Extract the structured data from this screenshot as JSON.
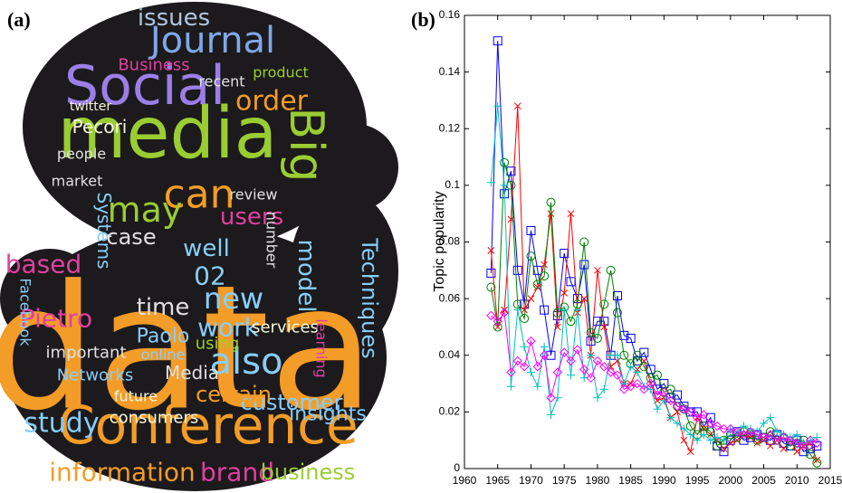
{
  "word_cloud": {
    "label": "(a)",
    "words": [
      "data",
      "Conference",
      "media",
      "Social",
      "Journal",
      "Big",
      "can",
      "may",
      "users",
      "study",
      "information",
      "brand",
      "business",
      "customer",
      "also",
      "new",
      "work",
      "time",
      "Pietro",
      "Paolo",
      "Pecori",
      "order",
      "issues",
      "Business",
      "insights",
      "certain",
      "Techniques",
      "model",
      "well",
      "based",
      "Facebook",
      "Networks",
      "Media",
      "services",
      "Systems",
      "case",
      "twitter",
      "important",
      "02",
      "consumers",
      "future",
      "online",
      "using",
      "number",
      "review",
      "product",
      "learning",
      "people",
      "recent",
      "market"
    ]
  },
  "chart_data": {
    "type": "line",
    "label": "(b)",
    "y_label": "Topic popularity",
    "x": [
      1964,
      1965,
      1966,
      1967,
      1968,
      1969,
      1970,
      1971,
      1972,
      1973,
      1974,
      1975,
      1976,
      1977,
      1978,
      1979,
      1980,
      1981,
      1982,
      1983,
      1984,
      1985,
      1986,
      1987,
      1988,
      1989,
      1990,
      1991,
      1992,
      1993,
      1994,
      1995,
      1996,
      1997,
      1998,
      1999,
      2000,
      2001,
      2002,
      2003,
      2004,
      2005,
      2006,
      2007,
      2008,
      2009,
      2010,
      2011,
      2012,
      2013
    ],
    "series": [
      {
        "color": "#0000ff",
        "marker": "square",
        "values": [
          0.069,
          0.151,
          0.097,
          0.105,
          0.07,
          0.058,
          0.084,
          0.07,
          0.056,
          0.04,
          0.054,
          0.076,
          0.066,
          0.06,
          0.072,
          0.045,
          0.052,
          0.052,
          0.04,
          0.061,
          0.047,
          0.046,
          0.038,
          0.041,
          0.035,
          0.028,
          0.03,
          0.025,
          0.026,
          0.022,
          0.02,
          0.02,
          0.015,
          0.018,
          0.008,
          0.006,
          0.01,
          0.013,
          0.01,
          0.011,
          0.012,
          0.011,
          0.01,
          0.012,
          0.009,
          0.008,
          0.01,
          0.006,
          0.007,
          0.008
        ]
      },
      {
        "color": "#ff0000",
        "marker": "x",
        "values": [
          0.077,
          0.05,
          0.056,
          0.088,
          0.128,
          0.056,
          0.06,
          0.064,
          0.072,
          0.09,
          0.05,
          0.062,
          0.09,
          0.055,
          0.06,
          0.04,
          0.07,
          0.05,
          0.036,
          0.038,
          0.03,
          0.03,
          0.035,
          0.038,
          0.03,
          0.024,
          0.025,
          0.018,
          0.02,
          0.01,
          0.006,
          0.018,
          0.014,
          0.012,
          0.01,
          0.007,
          0.009,
          0.01,
          0.012,
          0.011,
          0.009,
          0.01,
          0.008,
          0.01,
          0.007,
          0.01,
          0.006,
          0.008,
          0.009,
          0.003
        ]
      },
      {
        "color": "#008000",
        "marker": "circle",
        "values": [
          0.064,
          0.05,
          0.108,
          0.1,
          0.058,
          0.053,
          0.075,
          0.065,
          0.068,
          0.094,
          0.055,
          0.057,
          0.052,
          0.058,
          0.08,
          0.048,
          0.046,
          0.058,
          0.07,
          0.055,
          0.04,
          0.037,
          0.04,
          0.036,
          0.032,
          0.033,
          0.027,
          0.028,
          0.022,
          0.021,
          0.015,
          0.012,
          0.015,
          0.013,
          0.008,
          0.01,
          0.012,
          0.011,
          0.013,
          0.012,
          0.01,
          0.011,
          0.013,
          0.01,
          0.011,
          0.008,
          0.009,
          0.01,
          0.005,
          0.002
        ]
      },
      {
        "color": "#00bfbf",
        "marker": "plus",
        "values": [
          0.101,
          0.128,
          0.1,
          0.029,
          0.056,
          0.043,
          0.034,
          0.029,
          0.043,
          0.019,
          0.025,
          0.056,
          0.033,
          0.056,
          0.032,
          0.04,
          0.025,
          0.028,
          0.04,
          0.04,
          0.03,
          0.036,
          0.034,
          0.029,
          0.028,
          0.021,
          0.024,
          0.018,
          0.016,
          0.014,
          0.012,
          0.01,
          0.012,
          0.01,
          0.011,
          0.01,
          0.014,
          0.013,
          0.015,
          0.014,
          0.013,
          0.016,
          0.018,
          0.013,
          0.012,
          0.011,
          0.012,
          0.009,
          0.01,
          0.011
        ]
      },
      {
        "color": "#ff00ff",
        "marker": "diamond",
        "values": [
          0.054,
          0.052,
          0.055,
          0.034,
          0.038,
          0.036,
          0.045,
          0.036,
          0.04,
          0.025,
          0.034,
          0.041,
          0.038,
          0.042,
          0.035,
          0.032,
          0.038,
          0.036,
          0.034,
          0.033,
          0.028,
          0.029,
          0.03,
          0.028,
          0.03,
          0.026,
          0.027,
          0.024,
          0.022,
          0.021,
          0.02,
          0.018,
          0.019,
          0.016,
          0.015,
          0.014,
          0.014,
          0.013,
          0.012,
          0.013,
          0.012,
          0.011,
          0.012,
          0.01,
          0.011,
          0.01,
          0.009,
          0.008,
          0.01,
          0.009
        ]
      }
    ],
    "xlim": [
      1960,
      2015
    ],
    "xticks": [
      1960,
      1965,
      1970,
      1975,
      1980,
      1985,
      1990,
      1995,
      2000,
      2005,
      2010,
      2015
    ],
    "ylim": [
      0,
      0.16
    ],
    "yticks": [
      0,
      0.02,
      0.04,
      0.06,
      0.08,
      0.1,
      0.12,
      0.14,
      0.16
    ]
  }
}
